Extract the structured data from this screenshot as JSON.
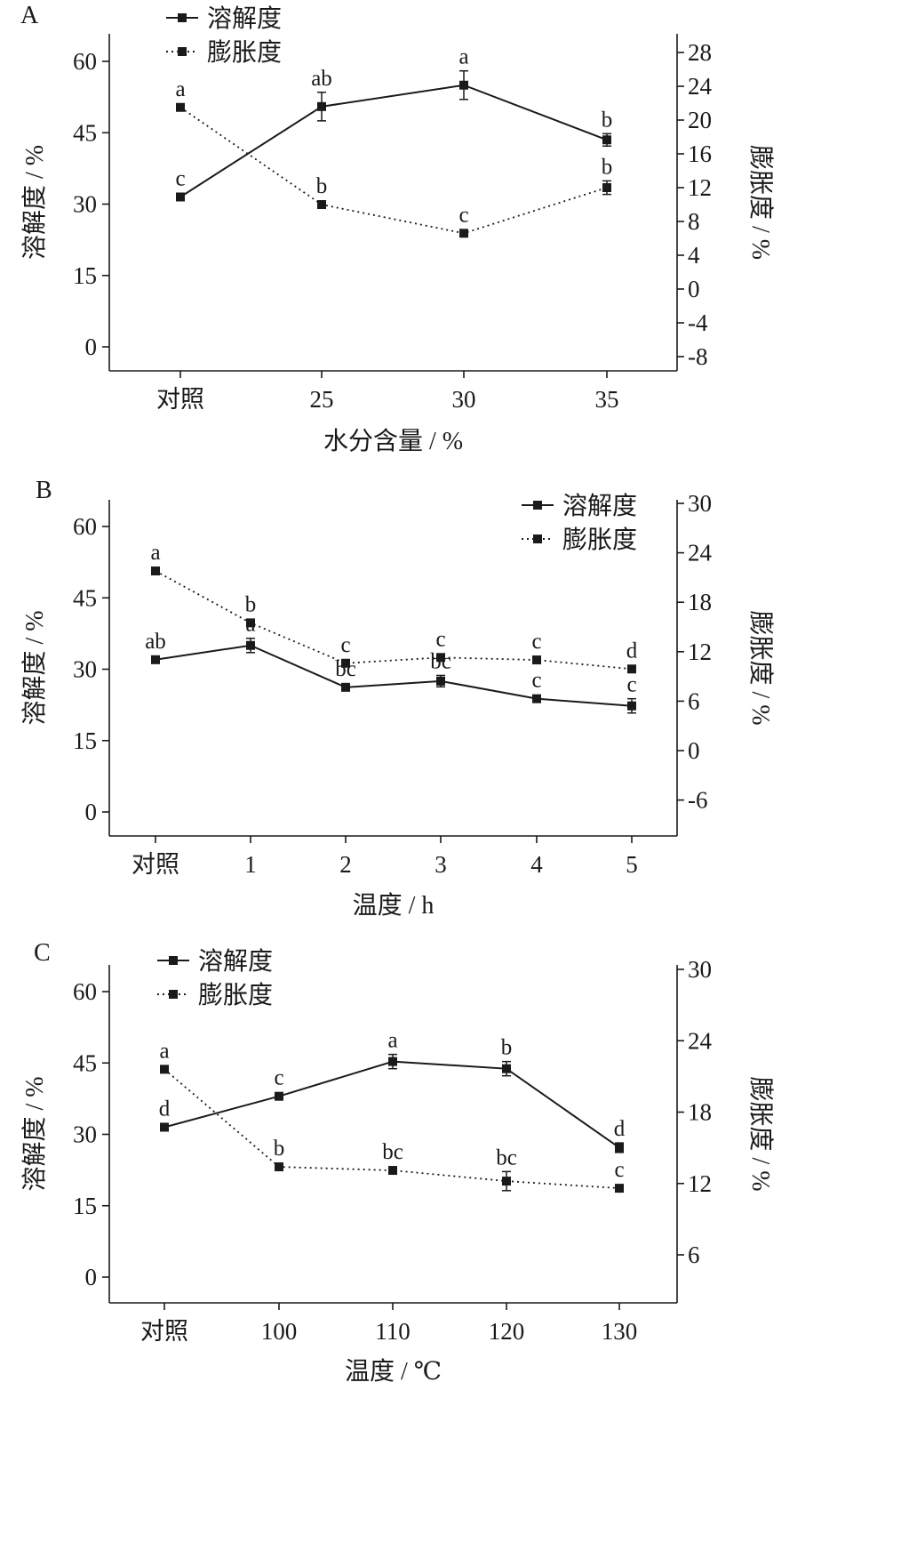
{
  "chart_data": [
    {
      "type": "line",
      "panel_label": "A",
      "categories": [
        "对照",
        "25",
        "30",
        "35"
      ],
      "xlabel": "水分含量 / %",
      "ylabel_left": "溶解度 / %",
      "ylabel_right": "膨胀度 / %",
      "ylim_left": [
        -5,
        65
      ],
      "yticks_left": [
        0,
        15,
        30,
        45,
        60
      ],
      "ylim_right": [
        -10,
        30
      ],
      "yticks_right": [
        -8,
        -4,
        0,
        4,
        8,
        12,
        16,
        20,
        24,
        28
      ],
      "legend_position": "top-left",
      "series": [
        {
          "name": "溶解度",
          "axis": "left",
          "style": "solid",
          "values": [
            31.5,
            50.5,
            55,
            43.5
          ],
          "errors": [
            0.6,
            3,
            3,
            1.3
          ],
          "labels": [
            "c",
            "ab",
            "a",
            "b"
          ]
        },
        {
          "name": "膨胀度",
          "axis": "right",
          "style": "dotted",
          "values": [
            21.5,
            10,
            6.6,
            12
          ],
          "errors": [
            0.3,
            0.3,
            0.3,
            0.8
          ],
          "labels": [
            "a",
            "b",
            "c",
            "b"
          ]
        }
      ]
    },
    {
      "type": "line",
      "panel_label": "B",
      "categories": [
        "对照",
        "1",
        "2",
        "3",
        "4",
        "5"
      ],
      "xlabel": "温度 / h",
      "ylabel_left": "溶解度 / %",
      "ylabel_right": "膨胀度 / %",
      "ylim_left": [
        -5,
        65
      ],
      "yticks_left": [
        0,
        15,
        30,
        45,
        60
      ],
      "ylim_right": [
        -10,
        30
      ],
      "yticks_right": [
        -6,
        0,
        6,
        12,
        18,
        24,
        30
      ],
      "legend_position": "top-right",
      "series": [
        {
          "name": "溶解度",
          "axis": "left",
          "style": "solid",
          "values": [
            32,
            35,
            26.2,
            27.5,
            23.8,
            22.3
          ],
          "errors": [
            0.5,
            1.5,
            0.5,
            1.2,
            0.5,
            1.5
          ],
          "labels": [
            "ab",
            "a",
            "bc",
            "bc",
            "c",
            "c"
          ]
        },
        {
          "name": "膨胀度",
          "axis": "right",
          "style": "dotted",
          "values": [
            21.8,
            15.5,
            10.6,
            11.3,
            11,
            9.9
          ],
          "errors": [
            0.2,
            0.3,
            0.2,
            0.2,
            0.2,
            0.2
          ],
          "labels": [
            "a",
            "b",
            "c",
            "c",
            "c",
            "d"
          ]
        }
      ]
    },
    {
      "type": "line",
      "panel_label": "C",
      "categories": [
        "对照",
        "100",
        "110",
        "120",
        "130"
      ],
      "xlabel": "温度 / ℃",
      "ylabel_left": "溶解度 / %",
      "ylabel_right": "膨胀度 / %",
      "ylim_left": [
        -5,
        65
      ],
      "yticks_left": [
        0,
        15,
        30,
        45,
        60
      ],
      "ylim_right": [
        2,
        30
      ],
      "yticks_right": [
        6,
        12,
        18,
        24,
        30
      ],
      "legend_position": "top-left",
      "series": [
        {
          "name": "溶解度",
          "axis": "left",
          "style": "solid",
          "values": [
            31.5,
            38,
            45.3,
            43.8,
            27.2
          ],
          "errors": [
            0.5,
            0.5,
            1.5,
            1.5,
            1
          ],
          "labels": [
            "d",
            "c",
            "a",
            "b",
            "d"
          ]
        },
        {
          "name": "膨胀度",
          "axis": "right",
          "style": "dotted",
          "values": [
            21.6,
            13.4,
            13.1,
            12.2,
            11.6
          ],
          "errors": [
            0.2,
            0.2,
            0.2,
            0.8,
            0.2
          ],
          "labels": [
            "a",
            "b",
            "bc",
            "bc",
            "c"
          ]
        }
      ]
    }
  ]
}
